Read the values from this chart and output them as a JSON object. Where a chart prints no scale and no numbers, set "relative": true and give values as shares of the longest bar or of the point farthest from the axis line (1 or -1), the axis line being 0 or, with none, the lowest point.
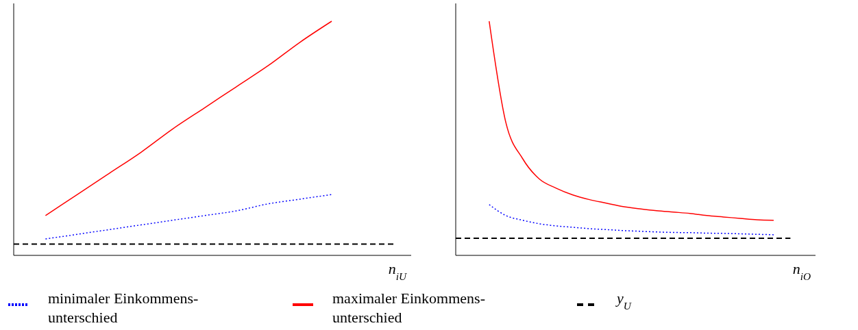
{
  "chart_data": [
    {
      "type": "line",
      "relative": true,
      "xlabel": "n$_{iU}$",
      "legend": "bottom",
      "categories": [
        null,
        null,
        null,
        null,
        null,
        null,
        null,
        null,
        null,
        null,
        null,
        null,
        null
      ],
      "series": [
        {
          "name": "minimaler Einkommens-unterschied",
          "color": "#0000ff",
          "line_style": "dotted",
          "values": [
            null,
            0.07,
            0.09,
            0.11,
            0.13,
            0.15,
            0.17,
            0.19,
            0.22,
            0.24,
            0.26,
            null,
            null
          ]
        },
        {
          "name": "maximaler Einkommens-unterschied",
          "color": "#ff0000",
          "line_style": "solid",
          "values": [
            null,
            0.17,
            0.26,
            0.35,
            0.44,
            0.54,
            0.63,
            0.72,
            0.81,
            0.91,
            1.0,
            null,
            null
          ]
        },
        {
          "name": "y$_{U}$",
          "color": "#000000",
          "line_style": "dashed",
          "values": [
            0.048,
            0.048,
            0.048,
            0.048,
            0.048,
            0.048,
            0.048,
            0.048,
            0.048,
            0.048,
            0.048,
            0.048,
            0.048
          ]
        }
      ]
    },
    {
      "type": "line",
      "relative": true,
      "xlabel": "n$_{iO}$",
      "categories": [
        null,
        null,
        null,
        null,
        null,
        null,
        null,
        null,
        null,
        null,
        null,
        null,
        null,
        null,
        null,
        null,
        null,
        null,
        null,
        null,
        null,
        null
      ],
      "series": [
        {
          "color": "#0000ff",
          "line_style": "dotted",
          "values": [
            null,
            null,
            0.217,
            0.17,
            0.15,
            0.135,
            0.126,
            0.12,
            0.114,
            0.11,
            0.106,
            0.103,
            0.1,
            0.098,
            0.097,
            0.095,
            0.094,
            0.092,
            0.09,
            0.088,
            null,
            null
          ]
        },
        {
          "color": "#ff0000",
          "line_style": "solid",
          "values": [
            null,
            null,
            1.0,
            0.566,
            0.413,
            0.326,
            0.287,
            0.258,
            0.238,
            0.223,
            0.208,
            0.199,
            0.191,
            0.185,
            0.179,
            0.17,
            0.164,
            0.158,
            0.152,
            0.15,
            null,
            null
          ]
        },
        {
          "color": "#000000",
          "line_style": "dashed",
          "values": [
            0.073,
            0.073,
            0.073,
            0.073,
            0.073,
            0.073,
            0.073,
            0.073,
            0.073,
            0.073,
            0.073,
            0.073,
            0.073,
            0.073,
            0.073,
            0.073,
            0.073,
            0.073,
            0.073,
            0.073,
            0.073,
            null
          ]
        }
      ]
    }
  ]
}
